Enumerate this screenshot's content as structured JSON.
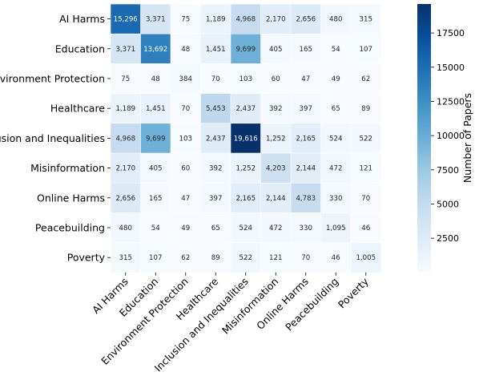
{
  "chart_data": {
    "type": "heatmap",
    "rows": [
      "AI Harms",
      "Education",
      "Environment Protection",
      "Healthcare",
      "Inclusion and Inequalities",
      "Misinformation",
      "Online Harms",
      "Peacebuilding",
      "Poverty"
    ],
    "columns": [
      "AI Harms",
      "Education",
      "Environment Protection",
      "Healthcare",
      "Inclusion and Inequalities",
      "Misinformation",
      "Online Harms",
      "Peacebuilding",
      "Poverty"
    ],
    "values": [
      [
        15296,
        3371,
        75,
        1189,
        4968,
        2170,
        2656,
        480,
        315
      ],
      [
        3371,
        13692,
        48,
        1451,
        9699,
        405,
        165,
        54,
        107
      ],
      [
        75,
        48,
        384,
        70,
        103,
        60,
        47,
        49,
        62
      ],
      [
        1189,
        1451,
        70,
        5453,
        2437,
        392,
        397,
        65,
        89
      ],
      [
        4968,
        9699,
        103,
        2437,
        19616,
        1252,
        2165,
        524,
        522
      ],
      [
        2170,
        405,
        60,
        392,
        1252,
        4203,
        2144,
        472,
        121
      ],
      [
        2656,
        165,
        47,
        397,
        2165,
        2144,
        4783,
        330,
        70
      ],
      [
        480,
        54,
        49,
        65,
        524,
        472,
        330,
        1095,
        46
      ],
      [
        315,
        107,
        62,
        89,
        522,
        121,
        70,
        46,
        1005
      ]
    ],
    "value_labels": [
      [
        "15,296",
        "3,371",
        "75",
        "1,189",
        "4,968",
        "2,170",
        "2,656",
        "480",
        "315"
      ],
      [
        "3,371",
        "13,692",
        "48",
        "1,451",
        "9,699",
        "405",
        "165",
        "54",
        "107"
      ],
      [
        "75",
        "48",
        "384",
        "70",
        "103",
        "60",
        "47",
        "49",
        "62"
      ],
      [
        "1,189",
        "1,451",
        "70",
        "5,453",
        "2,437",
        "392",
        "397",
        "65",
        "89"
      ],
      [
        "4,968",
        "9,699",
        "103",
        "2,437",
        "19,616",
        "1,252",
        "2,165",
        "524",
        "522"
      ],
      [
        "2,170",
        "405",
        "60",
        "392",
        "1,252",
        "4,203",
        "2,144",
        "472",
        "121"
      ],
      [
        "2,656",
        "165",
        "47",
        "397",
        "2,165",
        "2,144",
        "4,783",
        "330",
        "70"
      ],
      [
        "480",
        "54",
        "49",
        "65",
        "524",
        "472",
        "330",
        "1,095",
        "46"
      ],
      [
        "315",
        "107",
        "62",
        "89",
        "522",
        "121",
        "70",
        "46",
        "1,005"
      ]
    ],
    "colorbar": {
      "label": "Number of Papers",
      "ticks": [
        2500,
        5000,
        7500,
        10000,
        12500,
        15000,
        17500
      ],
      "tick_labels": [
        "2500",
        "5000",
        "7500",
        "10000",
        "12500",
        "15000",
        "17500"
      ],
      "range": [
        46,
        19616
      ],
      "colormap": "Blues"
    },
    "title": "",
    "xlabel": "",
    "ylabel": ""
  }
}
